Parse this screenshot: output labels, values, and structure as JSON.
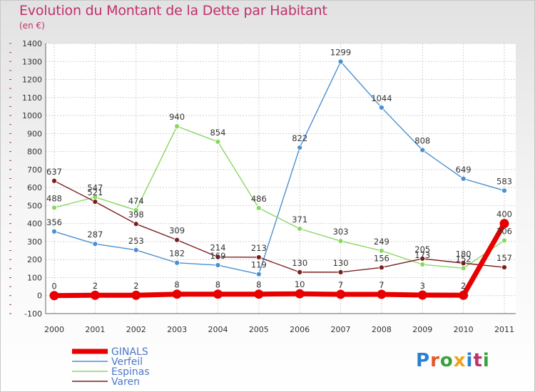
{
  "title": "Evolution du Montant de la Dette par Habitant",
  "subtitle": "(en €)",
  "logo": {
    "text": "Proxiti",
    "letter_colors": [
      "#2a7fd0",
      "#e8562a",
      "#3ba03b",
      "#f0a21a",
      "#2a7fd0",
      "#c0306a",
      "#3ba03b"
    ]
  },
  "chart_data": {
    "type": "line",
    "title": "Evolution du Montant de la Dette par Habitant",
    "subtitle": "(en €)",
    "x": [
      "2000",
      "2001",
      "2002",
      "2003",
      "2004",
      "2005",
      "2006",
      "2007",
      "2008",
      "2009",
      "2010",
      "2011"
    ],
    "ylim": [
      -100,
      1400
    ],
    "yticks": [
      "-100",
      "0",
      "100",
      "200",
      "300",
      "400",
      "500",
      "600",
      "700",
      "800",
      "900",
      "1000",
      "1100",
      "1200",
      "1300",
      "1400"
    ],
    "grid": true,
    "legend_position": "bottom-left",
    "series": [
      {
        "name": "GINALS",
        "color": "#e80000",
        "values": [
          0,
          2,
          2,
          8,
          8,
          8,
          10,
          7,
          7,
          3,
          2,
          400
        ],
        "labels": [
          "0",
          "2",
          "2",
          "8",
          "8",
          "8",
          "10",
          "7",
          "7",
          "3",
          "2",
          "400"
        ]
      },
      {
        "name": "Verfeil",
        "color": "#4a90d0",
        "values": [
          356,
          287,
          253,
          182,
          169,
          119,
          822,
          1299,
          1044,
          808,
          649,
          583
        ],
        "labels": [
          "356",
          "287",
          "253",
          "182",
          "169",
          "119",
          "822",
          "1299",
          "1044",
          "808",
          "649",
          "583"
        ]
      },
      {
        "name": "Espinas",
        "color": "#88d860",
        "values": [
          488,
          547,
          474,
          940,
          854,
          486,
          371,
          303,
          249,
          173,
          152,
          306
        ],
        "labels": [
          "488",
          "547",
          "474",
          "940",
          "854",
          "486",
          "371",
          "303",
          "249",
          "173",
          "152",
          "306"
        ]
      },
      {
        "name": "Varen",
        "color": "#7a1e1e",
        "values": [
          637,
          521,
          398,
          309,
          214,
          213,
          130,
          130,
          156,
          205,
          180,
          157
        ],
        "labels": [
          "637",
          "521",
          "398",
          "309",
          "214",
          "213",
          "130",
          "130",
          "156",
          "205",
          "180",
          "157"
        ]
      }
    ]
  }
}
